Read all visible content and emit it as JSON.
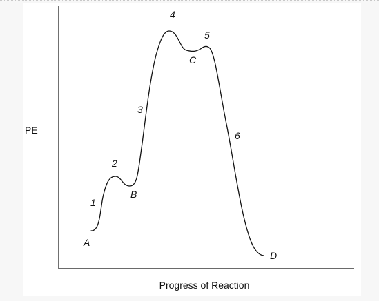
{
  "diagram": {
    "y_axis_label": "PE",
    "x_axis_label": "Progress of Reaction",
    "points": {
      "A": "A",
      "B": "B",
      "C": "C",
      "D": "D"
    },
    "steps": {
      "s1": "1",
      "s2": "2",
      "s3": "3",
      "s4": "4",
      "s5": "5",
      "s6": "6"
    }
  },
  "colors": {
    "background": "#f7f7f7",
    "panel": "#ffffff",
    "ink": "#111111"
  }
}
